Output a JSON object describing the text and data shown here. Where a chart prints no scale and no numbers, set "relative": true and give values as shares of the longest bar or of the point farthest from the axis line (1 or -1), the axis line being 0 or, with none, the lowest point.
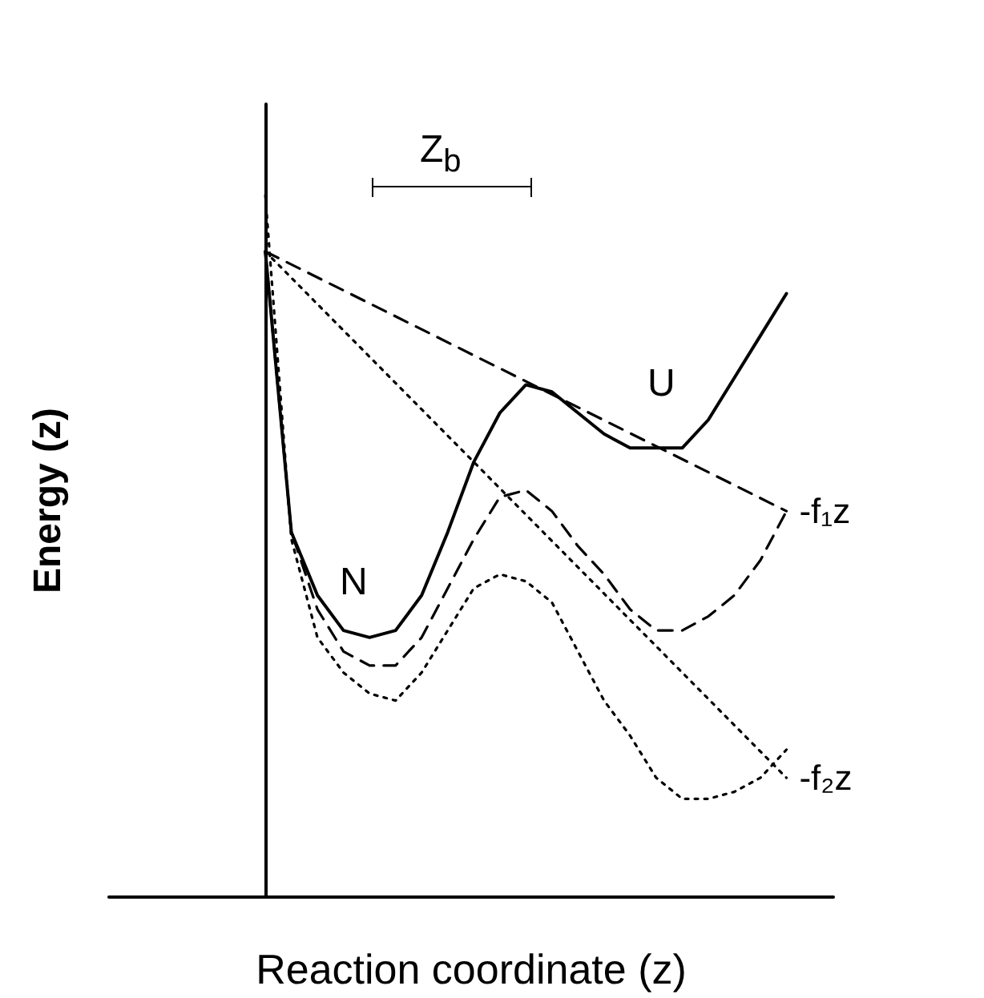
{
  "chart_data": {
    "type": "line",
    "xlabel": "Reaction coordinate (z)",
    "ylabel": "Energy (z)",
    "relative": true,
    "legend": false,
    "grid": false,
    "marker": "none",
    "categories": [
      null,
      null,
      null,
      null,
      null,
      null,
      null,
      null,
      null,
      null,
      null,
      null,
      null,
      null,
      null,
      null,
      null,
      null,
      null,
      null,
      null
    ],
    "series": [
      {
        "color": "#000000",
        "line_style": "solid",
        "values": [
          0.92,
          0.52,
          0.43,
          0.38,
          0.37,
          0.38,
          0.43,
          0.52,
          0.62,
          0.69,
          0.73,
          0.72,
          0.69,
          0.66,
          0.64,
          0.64,
          0.64,
          0.68,
          0.74,
          0.8,
          0.86
        ]
      },
      {
        "color": "#000000",
        "line_style": "dashed",
        "values": [
          0.92,
          0.52,
          0.41,
          0.35,
          0.33,
          0.33,
          0.37,
          0.44,
          0.51,
          0.57,
          0.58,
          0.55,
          0.5,
          0.46,
          0.41,
          0.38,
          0.38,
          0.4,
          0.43,
          0.48,
          0.55
        ]
      },
      {
        "color": "#000000",
        "line_style": "dotted",
        "values": [
          1,
          0.51,
          0.37,
          0.32,
          0.29,
          0.28,
          0.32,
          0.38,
          0.44,
          0.46,
          0.45,
          0.42,
          0.35,
          0.28,
          0.23,
          0.17,
          0.14,
          0.14,
          0.15,
          0.17,
          0.21
        ]
      },
      {
        "name": "-f₁z",
        "color": "#000000",
        "line_style": "dashed",
        "values": [
          0.92,
          null,
          null,
          null,
          null,
          null,
          null,
          null,
          null,
          null,
          null,
          null,
          null,
          null,
          null,
          null,
          null,
          null,
          null,
          null,
          0.55
        ]
      },
      {
        "name": "-f₂z",
        "color": "#000000",
        "line_style": "dotted",
        "values": [
          0.92,
          null,
          null,
          null,
          null,
          null,
          null,
          null,
          null,
          null,
          null,
          null,
          null,
          null,
          null,
          null,
          null,
          null,
          null,
          null,
          0.17
        ]
      }
    ],
    "annotations": [
      "Z$_{b}$",
      "N",
      "U"
    ]
  }
}
